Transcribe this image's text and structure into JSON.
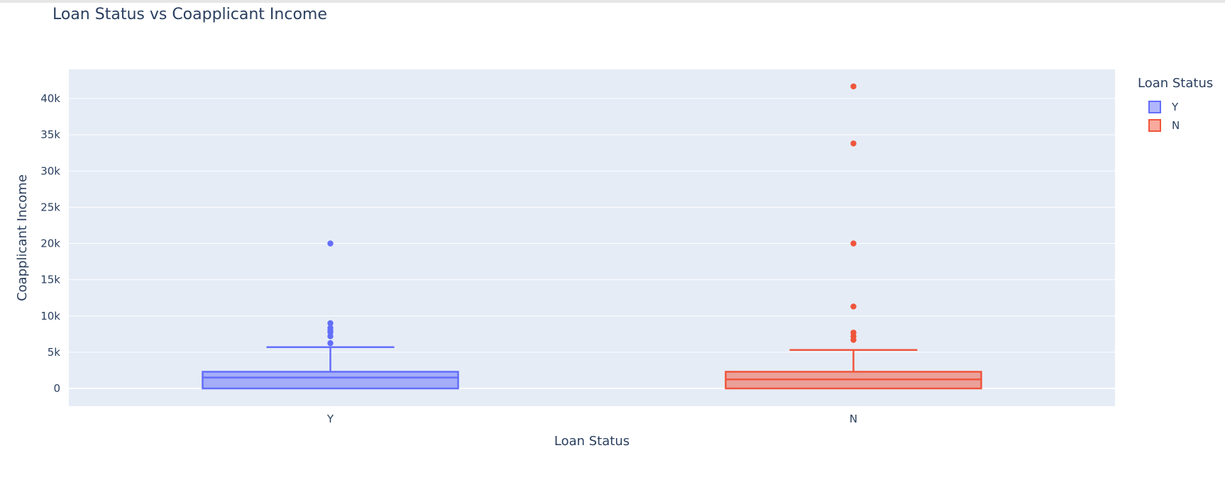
{
  "chart_data": {
    "type": "box",
    "title": "Loan Status vs Coapplicant Income",
    "xlabel": "Loan Status",
    "ylabel": "Coapplicant Income",
    "categories": [
      "Y",
      "N"
    ],
    "ylim": [
      -2300,
      43000
    ],
    "y_ticks": [
      0,
      5000,
      10000,
      15000,
      20000,
      25000,
      30000,
      35000,
      40000
    ],
    "y_tick_labels": [
      "0",
      "5k",
      "10k",
      "15k",
      "20k",
      "25k",
      "30k",
      "35k",
      "40k"
    ],
    "grid": true,
    "legend": {
      "title": "Loan Status",
      "placement": "top-right",
      "entries": [
        "Y",
        "N"
      ]
    },
    "series": [
      {
        "name": "Y",
        "color": "#636efa",
        "fill": "rgba(99,110,250,0.5)",
        "min": 0,
        "q1": 0,
        "median": 1500,
        "q3": 2300,
        "upper_fence": 5700,
        "outliers": [
          6250,
          7200,
          7750,
          8000,
          8350,
          9000,
          20000
        ]
      },
      {
        "name": "N",
        "color": "#ef553b",
        "fill": "rgba(239,85,59,0.5)",
        "min": 0,
        "q1": 0,
        "median": 1250,
        "q3": 2300,
        "upper_fence": 5300,
        "outliers": [
          6700,
          7200,
          7700,
          11300,
          20000,
          33800,
          41667
        ]
      }
    ]
  }
}
